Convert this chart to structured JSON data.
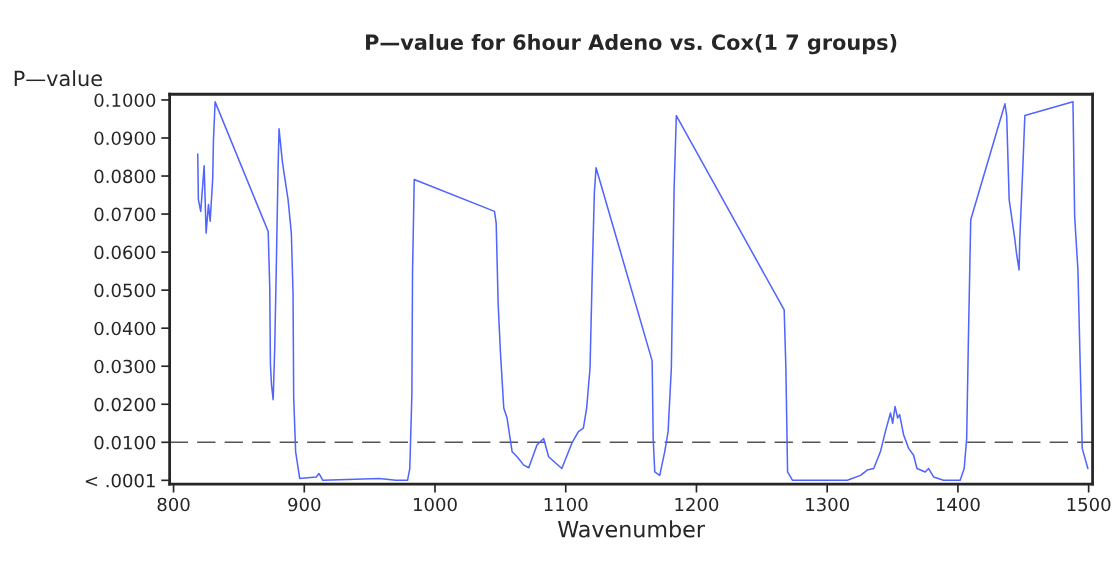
{
  "chart_data": {
    "type": "line",
    "title": "P—value for 6hour Adeno vs. Cox(1 7 groups)",
    "xlabel": "Wavenumber",
    "ylabel": "P—value",
    "xlim": [
      797,
      1503
    ],
    "xticks": [
      800,
      900,
      1000,
      1100,
      1200,
      1300,
      1400,
      1500
    ],
    "ylim": [
      -0.001,
      0.1015
    ],
    "yticks": [
      {
        "value": 0,
        "label": "< .0001"
      },
      {
        "value": 0.01,
        "label": "0.0100"
      },
      {
        "value": 0.02,
        "label": "0.0200"
      },
      {
        "value": 0.03,
        "label": "0.0300"
      },
      {
        "value": 0.04,
        "label": "0.0400"
      },
      {
        "value": 0.05,
        "label": "0.0500"
      },
      {
        "value": 0.06,
        "label": "0.0600"
      },
      {
        "value": 0.07,
        "label": "0.0700"
      },
      {
        "value": 0.08,
        "label": "0.0800"
      },
      {
        "value": 0.09,
        "label": "0.0900"
      },
      {
        "value": 0.1,
        "label": "0.1000"
      }
    ],
    "grid": false,
    "legend": false,
    "marker": "none",
    "line_style": "solid",
    "ref_lines": [
      {
        "axis": "y",
        "value": 0.01,
        "color": "#555555",
        "line_style": "dashed"
      }
    ],
    "series": [
      {
        "color": "#5064ff",
        "x": [
          818.5,
          819,
          820.8,
          823.4,
          824.9,
          826.7,
          828,
          830,
          830.5,
          831.8,
          872.4,
          873.6,
          874.1,
          874.9,
          876.2,
          877.4,
          878.7,
          880,
          880.7,
          883.3,
          887.6,
          890.1,
          891.4,
          891.9,
          893.4,
          896.5,
          909.2,
          911.2,
          914.2,
          957.4,
          970,
          979,
          980.7,
          982.3,
          982.8,
          984.1,
          1045.5,
          1046.8,
          1048.3,
          1050,
          1052.6,
          1055.1,
          1059,
          1062.8,
          1067.9,
          1071.7,
          1078,
          1083.1,
          1086.9,
          1097,
          1104.6,
          1109.7,
          1113.5,
          1116,
          1118.6,
          1120.4,
          1121.9,
          1123.2,
          1166.1,
          1166.9,
          1168.1,
          1171.9,
          1175.7,
          1178.3,
          1180.8,
          1182.9,
          1184.6,
          1267.1,
          1268.4,
          1269.7,
          1273.5,
          1315.4,
          1325.5,
          1330.6,
          1335.6,
          1340.7,
          1344.5,
          1348.4,
          1350.1,
          1351.9,
          1353.9,
          1355.4,
          1358.5,
          1362.3,
          1366.1,
          1368.7,
          1375,
          1377.6,
          1381.4,
          1389,
          1401.7,
          1404.8,
          1406.7,
          1408,
          1409.8,
          1436,
          1437.3,
          1439.2,
          1443.6,
          1444.8,
          1446.8,
          1447.3,
          1449.9,
          1451.2,
          1488,
          1489.3,
          1491.8,
          1493.6,
          1495.1,
          1499.4
        ],
        "values": [
          0.0858,
          0.0738,
          0.0707,
          0.0827,
          0.065,
          0.0725,
          0.0681,
          0.0796,
          0.0893,
          0.0995,
          0.0654,
          0.0504,
          0.0305,
          0.0252,
          0.0212,
          0.0349,
          0.0579,
          0.0827,
          0.0924,
          0.0836,
          0.0738,
          0.065,
          0.0491,
          0.0217,
          0.0075,
          0.0005,
          0.0009,
          0.0018,
          0,
          0.0005,
          0,
          0,
          0.0031,
          0.0225,
          0.0544,
          0.0791,
          0.0707,
          0.0676,
          0.0464,
          0.034,
          0.019,
          0.0164,
          0.0075,
          0.0062,
          0.004,
          0.0033,
          0.0093,
          0.011,
          0.0062,
          0.0031,
          0.0097,
          0.0128,
          0.0137,
          0.019,
          0.0296,
          0.0562,
          0.0756,
          0.0822,
          0.0314,
          0.011,
          0.0022,
          0.0013,
          0.0075,
          0.0128,
          0.0296,
          0.0765,
          0.0959,
          0.0448,
          0.0296,
          0.0022,
          0,
          0,
          0.0013,
          0.0027,
          0.0031,
          0.0075,
          0.0128,
          0.0177,
          0.015,
          0.0194,
          0.0164,
          0.0173,
          0.0119,
          0.0084,
          0.0066,
          0.0031,
          0.0022,
          0.0031,
          0.0009,
          0,
          0,
          0.0031,
          0.011,
          0.0367,
          0.0685,
          0.099,
          0.0959,
          0.0738,
          0.0632,
          0.0597,
          0.0553,
          0.0632,
          0.0844,
          0.0959,
          0.0995,
          0.0694,
          0.0553,
          0.0296,
          0.0084,
          0.0031
        ]
      }
    ]
  }
}
